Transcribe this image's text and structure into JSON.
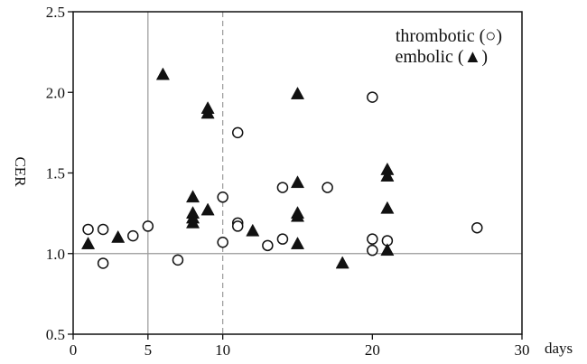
{
  "chart_data": {
    "type": "scatter",
    "title": "",
    "xlabel": "days",
    "ylabel": "CER",
    "xlim": [
      0,
      30
    ],
    "ylim": [
      0.5,
      2.5
    ],
    "x_ticks": [
      0,
      5,
      10,
      20,
      30
    ],
    "y_ticks": [
      "0.5",
      "1.0",
      "1.5",
      "2.0",
      "2.5"
    ],
    "grid": false,
    "reference_lines": {
      "vertical_solid": 5,
      "vertical_dashed": 10,
      "horizontal_solid": 1.0
    },
    "legend_placement": "top-right",
    "series": [
      {
        "name": "thrombotic (○)",
        "marker": "open-circle",
        "points": [
          [
            1,
            1.15
          ],
          [
            2,
            1.15
          ],
          [
            2,
            0.94
          ],
          [
            4,
            1.11
          ],
          [
            5,
            1.17
          ],
          [
            7,
            0.96
          ],
          [
            10,
            1.35
          ],
          [
            10,
            1.07
          ],
          [
            11,
            1.75
          ],
          [
            11,
            1.19
          ],
          [
            11,
            1.17
          ],
          [
            13,
            1.05
          ],
          [
            14,
            1.09
          ],
          [
            14,
            1.41
          ],
          [
            17,
            1.41
          ],
          [
            20,
            1.97
          ],
          [
            20,
            1.09
          ],
          [
            20,
            1.02
          ],
          [
            21,
            1.08
          ],
          [
            27,
            1.16
          ]
        ]
      },
      {
        "name": "embolic (▲)",
        "marker": "filled-triangle",
        "points": [
          [
            1,
            1.06
          ],
          [
            3,
            1.1
          ],
          [
            6,
            2.11
          ],
          [
            8,
            1.35
          ],
          [
            8,
            1.25
          ],
          [
            8,
            1.22
          ],
          [
            8,
            1.19
          ],
          [
            9,
            1.9
          ],
          [
            9,
            1.87
          ],
          [
            9,
            1.27
          ],
          [
            12,
            1.14
          ],
          [
            15,
            1.99
          ],
          [
            15,
            1.44
          ],
          [
            15,
            1.25
          ],
          [
            15,
            1.23
          ],
          [
            15,
            1.06
          ],
          [
            18,
            0.94
          ],
          [
            21,
            1.52
          ],
          [
            21,
            1.48
          ],
          [
            21,
            1.28
          ],
          [
            21,
            1.02
          ]
        ]
      }
    ]
  }
}
